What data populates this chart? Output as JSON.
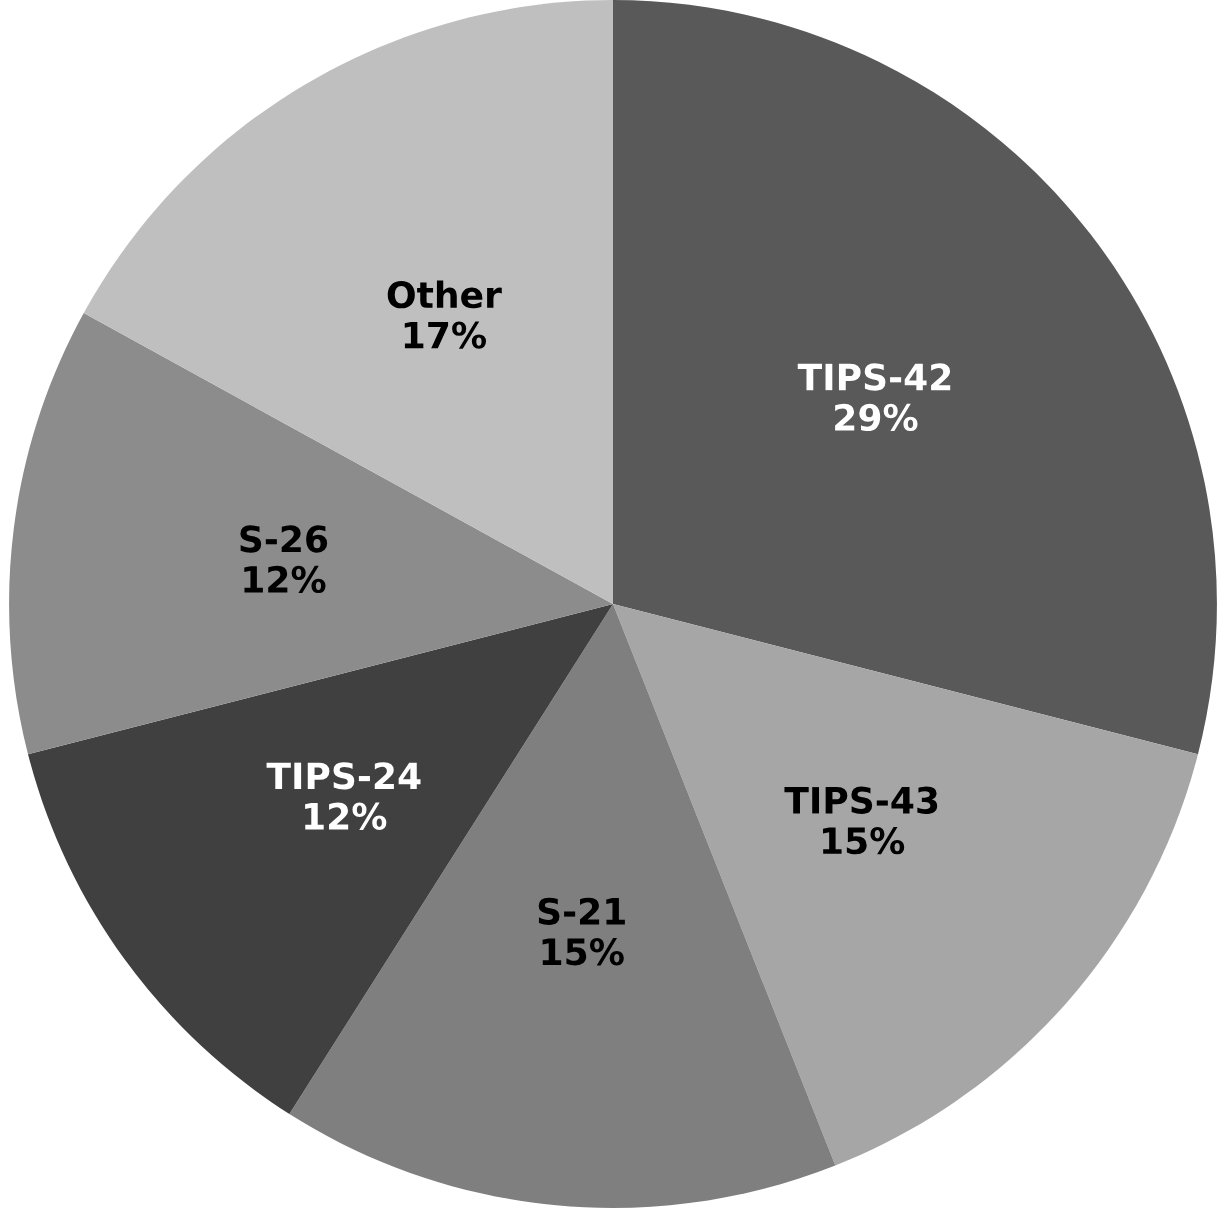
{
  "chart_data": {
    "type": "pie",
    "categories": [
      "TIPS-42",
      "TIPS-43",
      "S-21",
      "TIPS-24",
      "S-26",
      "Other"
    ],
    "values": [
      29,
      15,
      15,
      12,
      12,
      17
    ],
    "colors": [
      "#595959",
      "#a6a6a6",
      "#7f7f7f",
      "#404040",
      "#8c8c8c",
      "#bfbfbf"
    ],
    "value_labels": [
      "29%",
      "15%",
      "15%",
      "12%",
      "12%",
      "17%"
    ],
    "legend": false
  }
}
